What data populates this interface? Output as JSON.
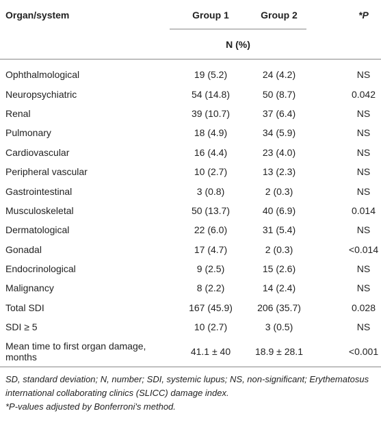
{
  "table": {
    "header": [
      "Organ/system",
      "Group 1",
      "Group 2",
      "*P"
    ],
    "subheader": "N (%)",
    "rows": [
      [
        "Ophthalmological",
        "19 (5.2)",
        "24 (4.2)",
        "NS"
      ],
      [
        "Neuropsychiatric",
        "54 (14.8)",
        "50 (8.7)",
        "0.042"
      ],
      [
        "Renal",
        "39 (10.7)",
        "37 (6.4)",
        "NS"
      ],
      [
        "Pulmonary",
        "18 (4.9)",
        "34 (5.9)",
        "NS"
      ],
      [
        "Cardiovascular",
        "16 (4.4)",
        "23 (4.0)",
        "NS"
      ],
      [
        "Peripheral vascular",
        "10 (2.7)",
        "13 (2.3)",
        "NS"
      ],
      [
        "Gastrointestinal",
        "3 (0.8)",
        "2 (0.3)",
        "NS"
      ],
      [
        "Musculoskeletal",
        "50 (13.7)",
        "40 (6.9)",
        "0.014"
      ],
      [
        "Dermatological",
        "22 (6.0)",
        "31 (5.4)",
        "NS"
      ],
      [
        "Gonadal",
        "17 (4.7)",
        "2 (0.3)",
        "<0.014"
      ],
      [
        "Endocrinological",
        "9 (2.5)",
        "15 (2.6)",
        "NS"
      ],
      [
        "Malignancy",
        "8 (2.2)",
        "14 (2.4)",
        "NS"
      ],
      [
        "Total SDI",
        "167 (45.9)",
        "206 (35.7)",
        "0.028"
      ],
      [
        "SDI ≥ 5",
        "10 (2.7)",
        "3 (0.5)",
        "NS"
      ],
      [
        "Mean time to first organ damage, months",
        "41.1 ± 40",
        "18.9 ± 28.1",
        "<0.001"
      ]
    ]
  },
  "footnotes": [
    "SD, standard deviation; N, number; SDI, systemic lupus; NS, non-significant; Erythematosus international collaborating clinics (SLICC) damage index.",
    "*P-values adjusted by Bonferroni's method."
  ]
}
